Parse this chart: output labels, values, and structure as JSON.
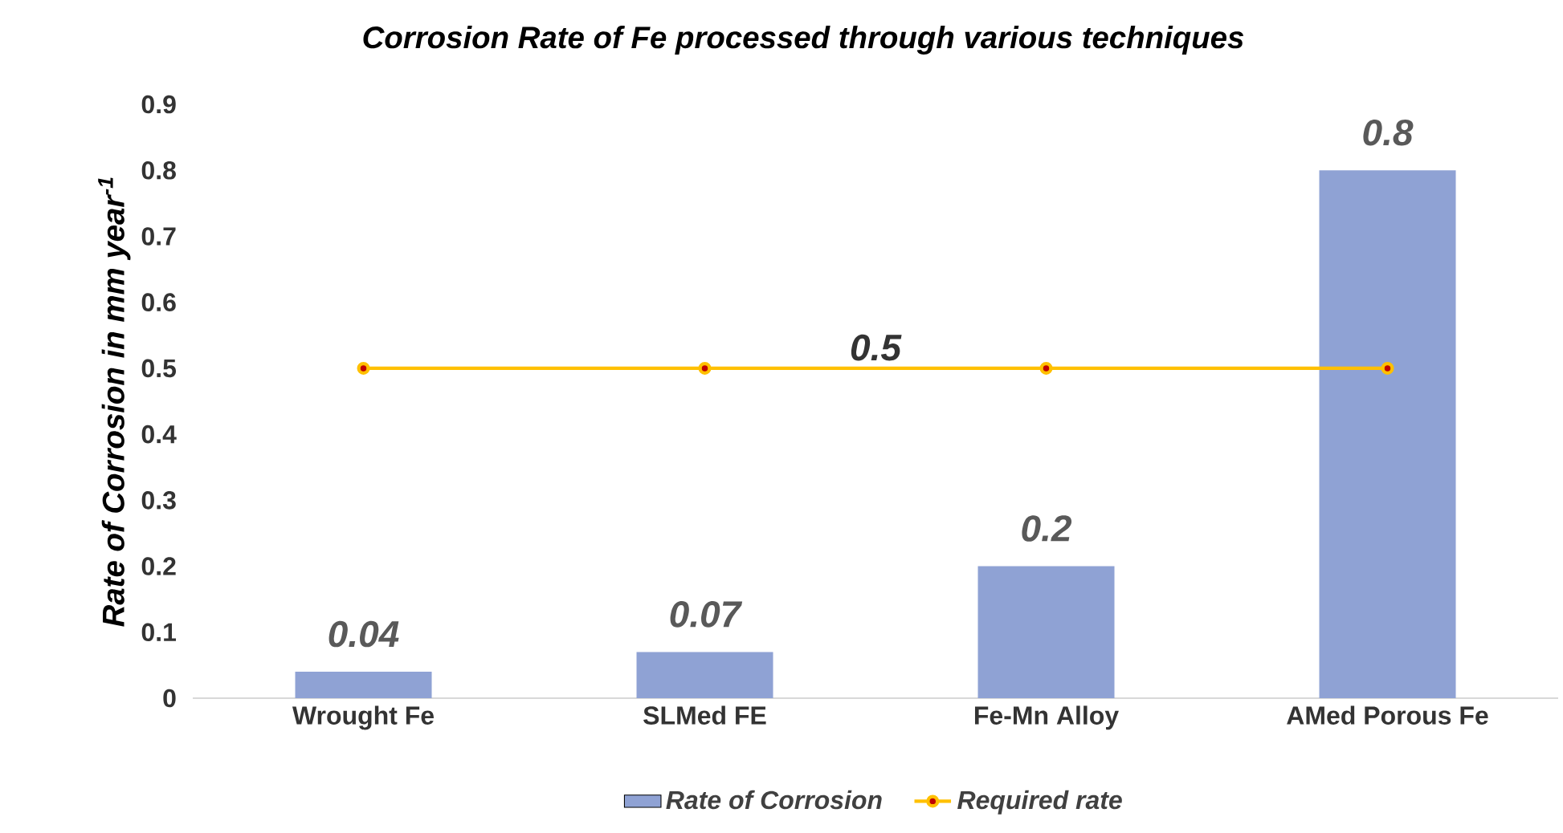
{
  "chart_data": {
    "type": "bar",
    "title": "Corrosion Rate of Fe processed through various techniques",
    "ylabel": "Rate of Corrosion in mm year$^{-1}$",
    "categories": [
      "Wrought Fe",
      "SLMed FE",
      "Fe-Mn Alloy",
      "AMed Porous Fe"
    ],
    "series": [
      {
        "name": "Rate of Corrosion",
        "color": "#8fa2d4",
        "values": [
          0.04,
          0.07,
          0.2,
          0.8
        ],
        "value_labels": [
          "0.04",
          "0.07",
          "0.2",
          "0.8"
        ]
      },
      {
        "name": "Required rate",
        "type": "line",
        "color": "#ffc000",
        "marker": "circle",
        "values": [
          0.5,
          0.5,
          0.5,
          0.5
        ]
      }
    ],
    "annotations": [
      {
        "text": "0.5",
        "y": 0.5
      }
    ],
    "ylim": [
      0,
      0.9
    ],
    "yticks": [
      0,
      0.1,
      0.2,
      0.3,
      0.4,
      0.5,
      0.6,
      0.7,
      0.8,
      0.9
    ],
    "grid": false,
    "legend": "bottom"
  }
}
